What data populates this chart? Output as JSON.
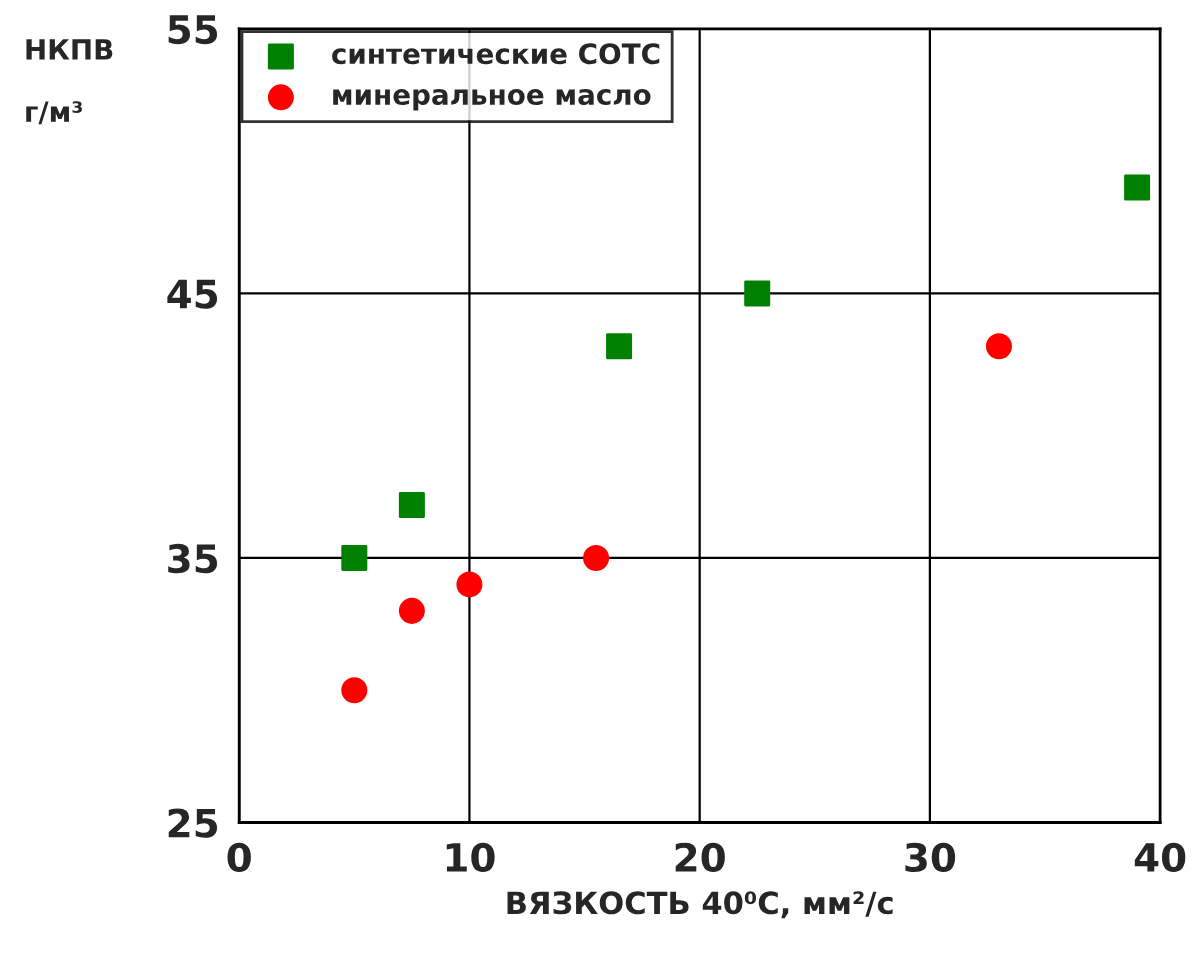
{
  "chart_data": {
    "type": "scatter",
    "xlabel": "ВЯЗКОСТЬ 40⁰С, мм²/с",
    "ylabel": "НКПВ\n\nг/м³",
    "series": [
      {
        "name": "синтетические СОТС",
        "color": "#008000",
        "marker": "square",
        "x": [
          5,
          7.5,
          16.5,
          22.5,
          39
        ],
        "values": [
          35,
          37,
          43,
          45,
          49
        ]
      },
      {
        "name": "минеральное масло",
        "color": "#ff0000",
        "marker": "circle",
        "x": [
          5,
          7.5,
          10,
          15.5,
          33
        ],
        "values": [
          30,
          33,
          34,
          35,
          43
        ]
      }
    ],
    "xlim": [
      0,
      40
    ],
    "xticks": [
      0,
      10,
      20,
      30,
      40
    ],
    "ylim": [
      25,
      55
    ],
    "yticks": [
      25,
      35,
      45,
      55
    ],
    "grid": true,
    "legend": "top left"
  }
}
